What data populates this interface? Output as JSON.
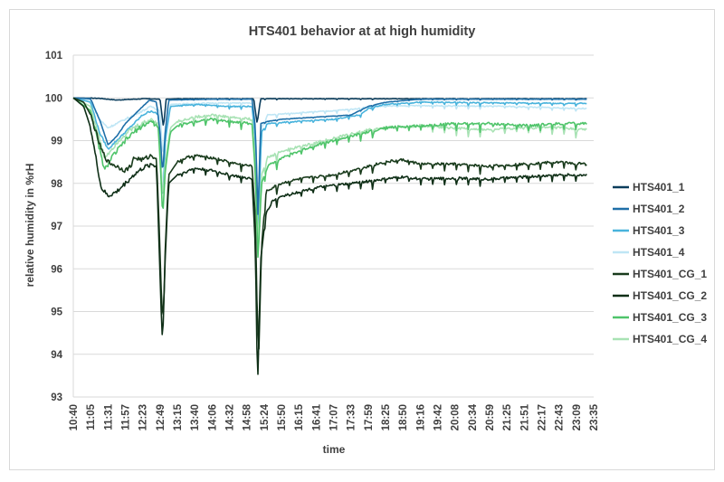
{
  "chart_data": {
    "type": "line",
    "title": "HTS401 behavior at at high humidity",
    "xlabel": "time",
    "ylabel": "relative humidity in %rH",
    "ylim": [
      93,
      101
    ],
    "yticks": [
      "93",
      "94",
      "95",
      "96",
      "97",
      "98",
      "99",
      "100",
      "101"
    ],
    "xticks": [
      "10:40",
      "11:05",
      "11:31",
      "11:57",
      "12:23",
      "12:49",
      "13:15",
      "13:40",
      "14:06",
      "14:32",
      "14:58",
      "15:24",
      "15:50",
      "16:15",
      "16:41",
      "17:07",
      "17:33",
      "17:59",
      "18:25",
      "18:50",
      "19:16",
      "19:42",
      "20:08",
      "20:34",
      "20:59",
      "21:25",
      "21:51",
      "22:17",
      "22:43",
      "23:09",
      "23:35"
    ],
    "grid": "horizontal",
    "legend_position": "right",
    "series": [
      {
        "name": "HTS401_1",
        "color": "#0b3d5c",
        "anchors": [
          [
            0,
            100.0
          ],
          [
            1.5,
            99.99
          ],
          [
            2.5,
            99.95
          ],
          [
            3.5,
            99.97
          ],
          [
            4.2,
            99.98
          ],
          [
            5.0,
            99.97
          ],
          [
            5.2,
            99.3
          ],
          [
            5.35,
            99.97
          ],
          [
            6.0,
            99.98
          ],
          [
            8.0,
            99.98
          ],
          [
            9.5,
            99.98
          ],
          [
            10.4,
            99.98
          ],
          [
            10.6,
            99.4
          ],
          [
            10.8,
            99.98
          ],
          [
            12,
            99.98
          ],
          [
            20,
            99.98
          ],
          [
            29.5,
            99.98
          ]
        ]
      },
      {
        "name": "HTS401_2",
        "color": "#1f6fa8",
        "anchors": [
          [
            0,
            100.0
          ],
          [
            1.0,
            99.98
          ],
          [
            1.6,
            99.4
          ],
          [
            2.0,
            98.9
          ],
          [
            2.5,
            99.1
          ],
          [
            3.0,
            99.4
          ],
          [
            3.5,
            99.6
          ],
          [
            4.0,
            99.8
          ],
          [
            4.4,
            99.95
          ],
          [
            4.8,
            99.9
          ],
          [
            5.0,
            99.2
          ],
          [
            5.15,
            98.2
          ],
          [
            5.3,
            99.2
          ],
          [
            5.5,
            99.95
          ],
          [
            8,
            99.97
          ],
          [
            10.3,
            99.97
          ],
          [
            10.5,
            99.3
          ],
          [
            10.65,
            97.2
          ],
          [
            10.8,
            99.4
          ],
          [
            11.2,
            99.45
          ],
          [
            12,
            99.5
          ],
          [
            14,
            99.55
          ],
          [
            16,
            99.6
          ],
          [
            17,
            99.8
          ],
          [
            18,
            99.9
          ],
          [
            20,
            99.97
          ],
          [
            25,
            99.97
          ],
          [
            29.5,
            99.97
          ]
        ]
      },
      {
        "name": "HTS401_3",
        "color": "#48b3dc",
        "anchors": [
          [
            0,
            100.0
          ],
          [
            1.0,
            99.9
          ],
          [
            1.5,
            99.2
          ],
          [
            2.0,
            98.8
          ],
          [
            2.5,
            99.0
          ],
          [
            3.0,
            99.2
          ],
          [
            3.5,
            99.4
          ],
          [
            4.0,
            99.6
          ],
          [
            4.5,
            99.7
          ],
          [
            4.9,
            99.6
          ],
          [
            5.05,
            98.5
          ],
          [
            5.15,
            97.5
          ],
          [
            5.3,
            99.0
          ],
          [
            5.6,
            99.8
          ],
          [
            7,
            99.85
          ],
          [
            9,
            99.8
          ],
          [
            10.3,
            99.8
          ],
          [
            10.5,
            99.0
          ],
          [
            10.65,
            96.9
          ],
          [
            10.85,
            99.2
          ],
          [
            11.2,
            99.4
          ],
          [
            13,
            99.45
          ],
          [
            15,
            99.5
          ],
          [
            16.5,
            99.6
          ],
          [
            17,
            99.75
          ],
          [
            18,
            99.85
          ],
          [
            20,
            99.9
          ],
          [
            25,
            99.88
          ],
          [
            29.5,
            99.87
          ]
        ]
      },
      {
        "name": "HTS401_4",
        "color": "#bfe6f5",
        "anchors": [
          [
            0,
            100.0
          ],
          [
            1.0,
            99.95
          ],
          [
            1.5,
            99.5
          ],
          [
            2.0,
            99.3
          ],
          [
            2.5,
            99.4
          ],
          [
            3.0,
            99.5
          ],
          [
            3.5,
            99.6
          ],
          [
            4.0,
            99.7
          ],
          [
            4.5,
            99.8
          ],
          [
            5.0,
            99.7
          ],
          [
            5.15,
            98.6
          ],
          [
            5.3,
            99.3
          ],
          [
            5.6,
            99.85
          ],
          [
            8,
            99.88
          ],
          [
            10.3,
            99.88
          ],
          [
            10.5,
            99.2
          ],
          [
            10.65,
            97.4
          ],
          [
            10.85,
            99.3
          ],
          [
            11.2,
            99.6
          ],
          [
            13,
            99.65
          ],
          [
            15,
            99.7
          ],
          [
            16.5,
            99.75
          ],
          [
            17,
            99.8
          ],
          [
            20,
            99.82
          ],
          [
            25,
            99.8
          ],
          [
            29.5,
            99.75
          ]
        ]
      },
      {
        "name": "HTS401_CG_1",
        "color": "#193b1c",
        "anchors": [
          [
            0,
            100.0
          ],
          [
            0.6,
            99.9
          ],
          [
            1.0,
            99.6
          ],
          [
            1.3,
            99.2
          ],
          [
            1.6,
            98.8
          ],
          [
            2.0,
            98.5
          ],
          [
            2.5,
            98.4
          ],
          [
            3.0,
            98.3
          ],
          [
            3.3,
            98.4
          ],
          [
            3.5,
            98.6
          ],
          [
            4.0,
            98.55
          ],
          [
            4.5,
            98.65
          ],
          [
            4.8,
            98.6
          ],
          [
            4.95,
            97.0
          ],
          [
            5.1,
            95.1
          ],
          [
            5.2,
            94.9
          ],
          [
            5.3,
            96.5
          ],
          [
            5.5,
            98.2
          ],
          [
            6.0,
            98.5
          ],
          [
            6.5,
            98.6
          ],
          [
            7,
            98.65
          ],
          [
            8,
            98.6
          ],
          [
            9,
            98.5
          ],
          [
            9.5,
            98.45
          ],
          [
            10.3,
            98.4
          ],
          [
            10.5,
            97.2
          ],
          [
            10.6,
            95.0
          ],
          [
            10.7,
            94.1
          ],
          [
            10.85,
            96.5
          ],
          [
            11.1,
            97.8
          ],
          [
            11.5,
            97.9
          ],
          [
            12,
            98.0
          ],
          [
            13,
            98.1
          ],
          [
            14,
            98.15
          ],
          [
            15,
            98.2
          ],
          [
            16,
            98.3
          ],
          [
            17,
            98.4
          ],
          [
            18,
            98.5
          ],
          [
            19,
            98.55
          ],
          [
            20,
            98.45
          ],
          [
            22,
            98.45
          ],
          [
            24,
            98.4
          ],
          [
            26,
            98.45
          ],
          [
            28,
            98.5
          ],
          [
            29.5,
            98.45
          ]
        ]
      },
      {
        "name": "HTS401_CG_2",
        "color": "#0f2f17",
        "anchors": [
          [
            0,
            100.0
          ],
          [
            0.6,
            99.8
          ],
          [
            1.0,
            99.3
          ],
          [
            1.3,
            98.6
          ],
          [
            1.6,
            97.9
          ],
          [
            2.0,
            97.7
          ],
          [
            2.5,
            97.8
          ],
          [
            3.0,
            98.0
          ],
          [
            3.5,
            98.2
          ],
          [
            4.0,
            98.35
          ],
          [
            4.5,
            98.45
          ],
          [
            4.8,
            98.4
          ],
          [
            4.95,
            96.5
          ],
          [
            5.1,
            94.6
          ],
          [
            5.15,
            94.3
          ],
          [
            5.3,
            96.3
          ],
          [
            5.5,
            98.0
          ],
          [
            6.0,
            98.2
          ],
          [
            7,
            98.35
          ],
          [
            8,
            98.3
          ],
          [
            9,
            98.2
          ],
          [
            10.3,
            98.1
          ],
          [
            10.5,
            96.5
          ],
          [
            10.6,
            93.8
          ],
          [
            10.65,
            93.5
          ],
          [
            10.8,
            96.2
          ],
          [
            11.1,
            97.3
          ],
          [
            11.5,
            97.6
          ],
          [
            12,
            97.7
          ],
          [
            13,
            97.8
          ],
          [
            14,
            97.9
          ],
          [
            15,
            97.95
          ],
          [
            16,
            98.0
          ],
          [
            17,
            98.05
          ],
          [
            18,
            98.1
          ],
          [
            19,
            98.15
          ],
          [
            20,
            98.1
          ],
          [
            22,
            98.12
          ],
          [
            24,
            98.1
          ],
          [
            26,
            98.15
          ],
          [
            28,
            98.2
          ],
          [
            29.5,
            98.2
          ]
        ]
      },
      {
        "name": "HTS401_CG_3",
        "color": "#4fc46a",
        "anchors": [
          [
            0,
            100.0
          ],
          [
            1.0,
            99.7
          ],
          [
            1.4,
            99.0
          ],
          [
            1.8,
            98.3
          ],
          [
            2.2,
            98.6
          ],
          [
            2.6,
            98.8
          ],
          [
            3.0,
            99.0
          ],
          [
            3.5,
            99.2
          ],
          [
            4.0,
            99.35
          ],
          [
            4.5,
            99.45
          ],
          [
            4.9,
            99.3
          ],
          [
            5.05,
            98.2
          ],
          [
            5.15,
            97.2
          ],
          [
            5.3,
            98.3
          ],
          [
            5.6,
            99.2
          ],
          [
            6,
            99.35
          ],
          [
            7,
            99.45
          ],
          [
            8,
            99.5
          ],
          [
            9,
            99.45
          ],
          [
            10.3,
            99.4
          ],
          [
            10.5,
            98.2
          ],
          [
            10.65,
            96.2
          ],
          [
            10.85,
            98.0
          ],
          [
            11.2,
            98.4
          ],
          [
            12,
            98.6
          ],
          [
            13,
            98.75
          ],
          [
            14,
            98.9
          ],
          [
            15,
            99.0
          ],
          [
            16,
            99.1
          ],
          [
            17,
            99.2
          ],
          [
            18,
            99.3
          ],
          [
            20,
            99.35
          ],
          [
            22,
            99.4
          ],
          [
            24,
            99.4
          ],
          [
            26,
            99.35
          ],
          [
            28,
            99.4
          ],
          [
            29.5,
            99.4
          ]
        ]
      },
      {
        "name": "HTS401_CG_4",
        "color": "#a8e2b4",
        "anchors": [
          [
            0,
            100.0
          ],
          [
            1.0,
            99.8
          ],
          [
            1.4,
            99.2
          ],
          [
            1.8,
            98.6
          ],
          [
            2.2,
            98.8
          ],
          [
            2.6,
            99.0
          ],
          [
            3.0,
            99.15
          ],
          [
            3.5,
            99.3
          ],
          [
            4.0,
            99.4
          ],
          [
            4.5,
            99.5
          ],
          [
            4.9,
            99.4
          ],
          [
            5.05,
            98.5
          ],
          [
            5.15,
            97.6
          ],
          [
            5.3,
            98.5
          ],
          [
            5.6,
            99.3
          ],
          [
            6,
            99.45
          ],
          [
            7,
            99.55
          ],
          [
            8,
            99.6
          ],
          [
            9,
            99.55
          ],
          [
            10.3,
            99.5
          ],
          [
            10.5,
            98.5
          ],
          [
            10.65,
            96.6
          ],
          [
            10.85,
            98.2
          ],
          [
            11.2,
            98.6
          ],
          [
            12,
            98.75
          ],
          [
            13,
            98.85
          ],
          [
            14,
            98.95
          ],
          [
            15,
            99.05
          ],
          [
            16,
            99.15
          ],
          [
            17,
            99.25
          ],
          [
            18,
            99.3
          ],
          [
            20,
            99.35
          ],
          [
            22,
            99.3
          ],
          [
            24,
            99.25
          ],
          [
            26,
            99.3
          ],
          [
            28,
            99.3
          ],
          [
            29.5,
            99.25
          ]
        ]
      }
    ]
  }
}
